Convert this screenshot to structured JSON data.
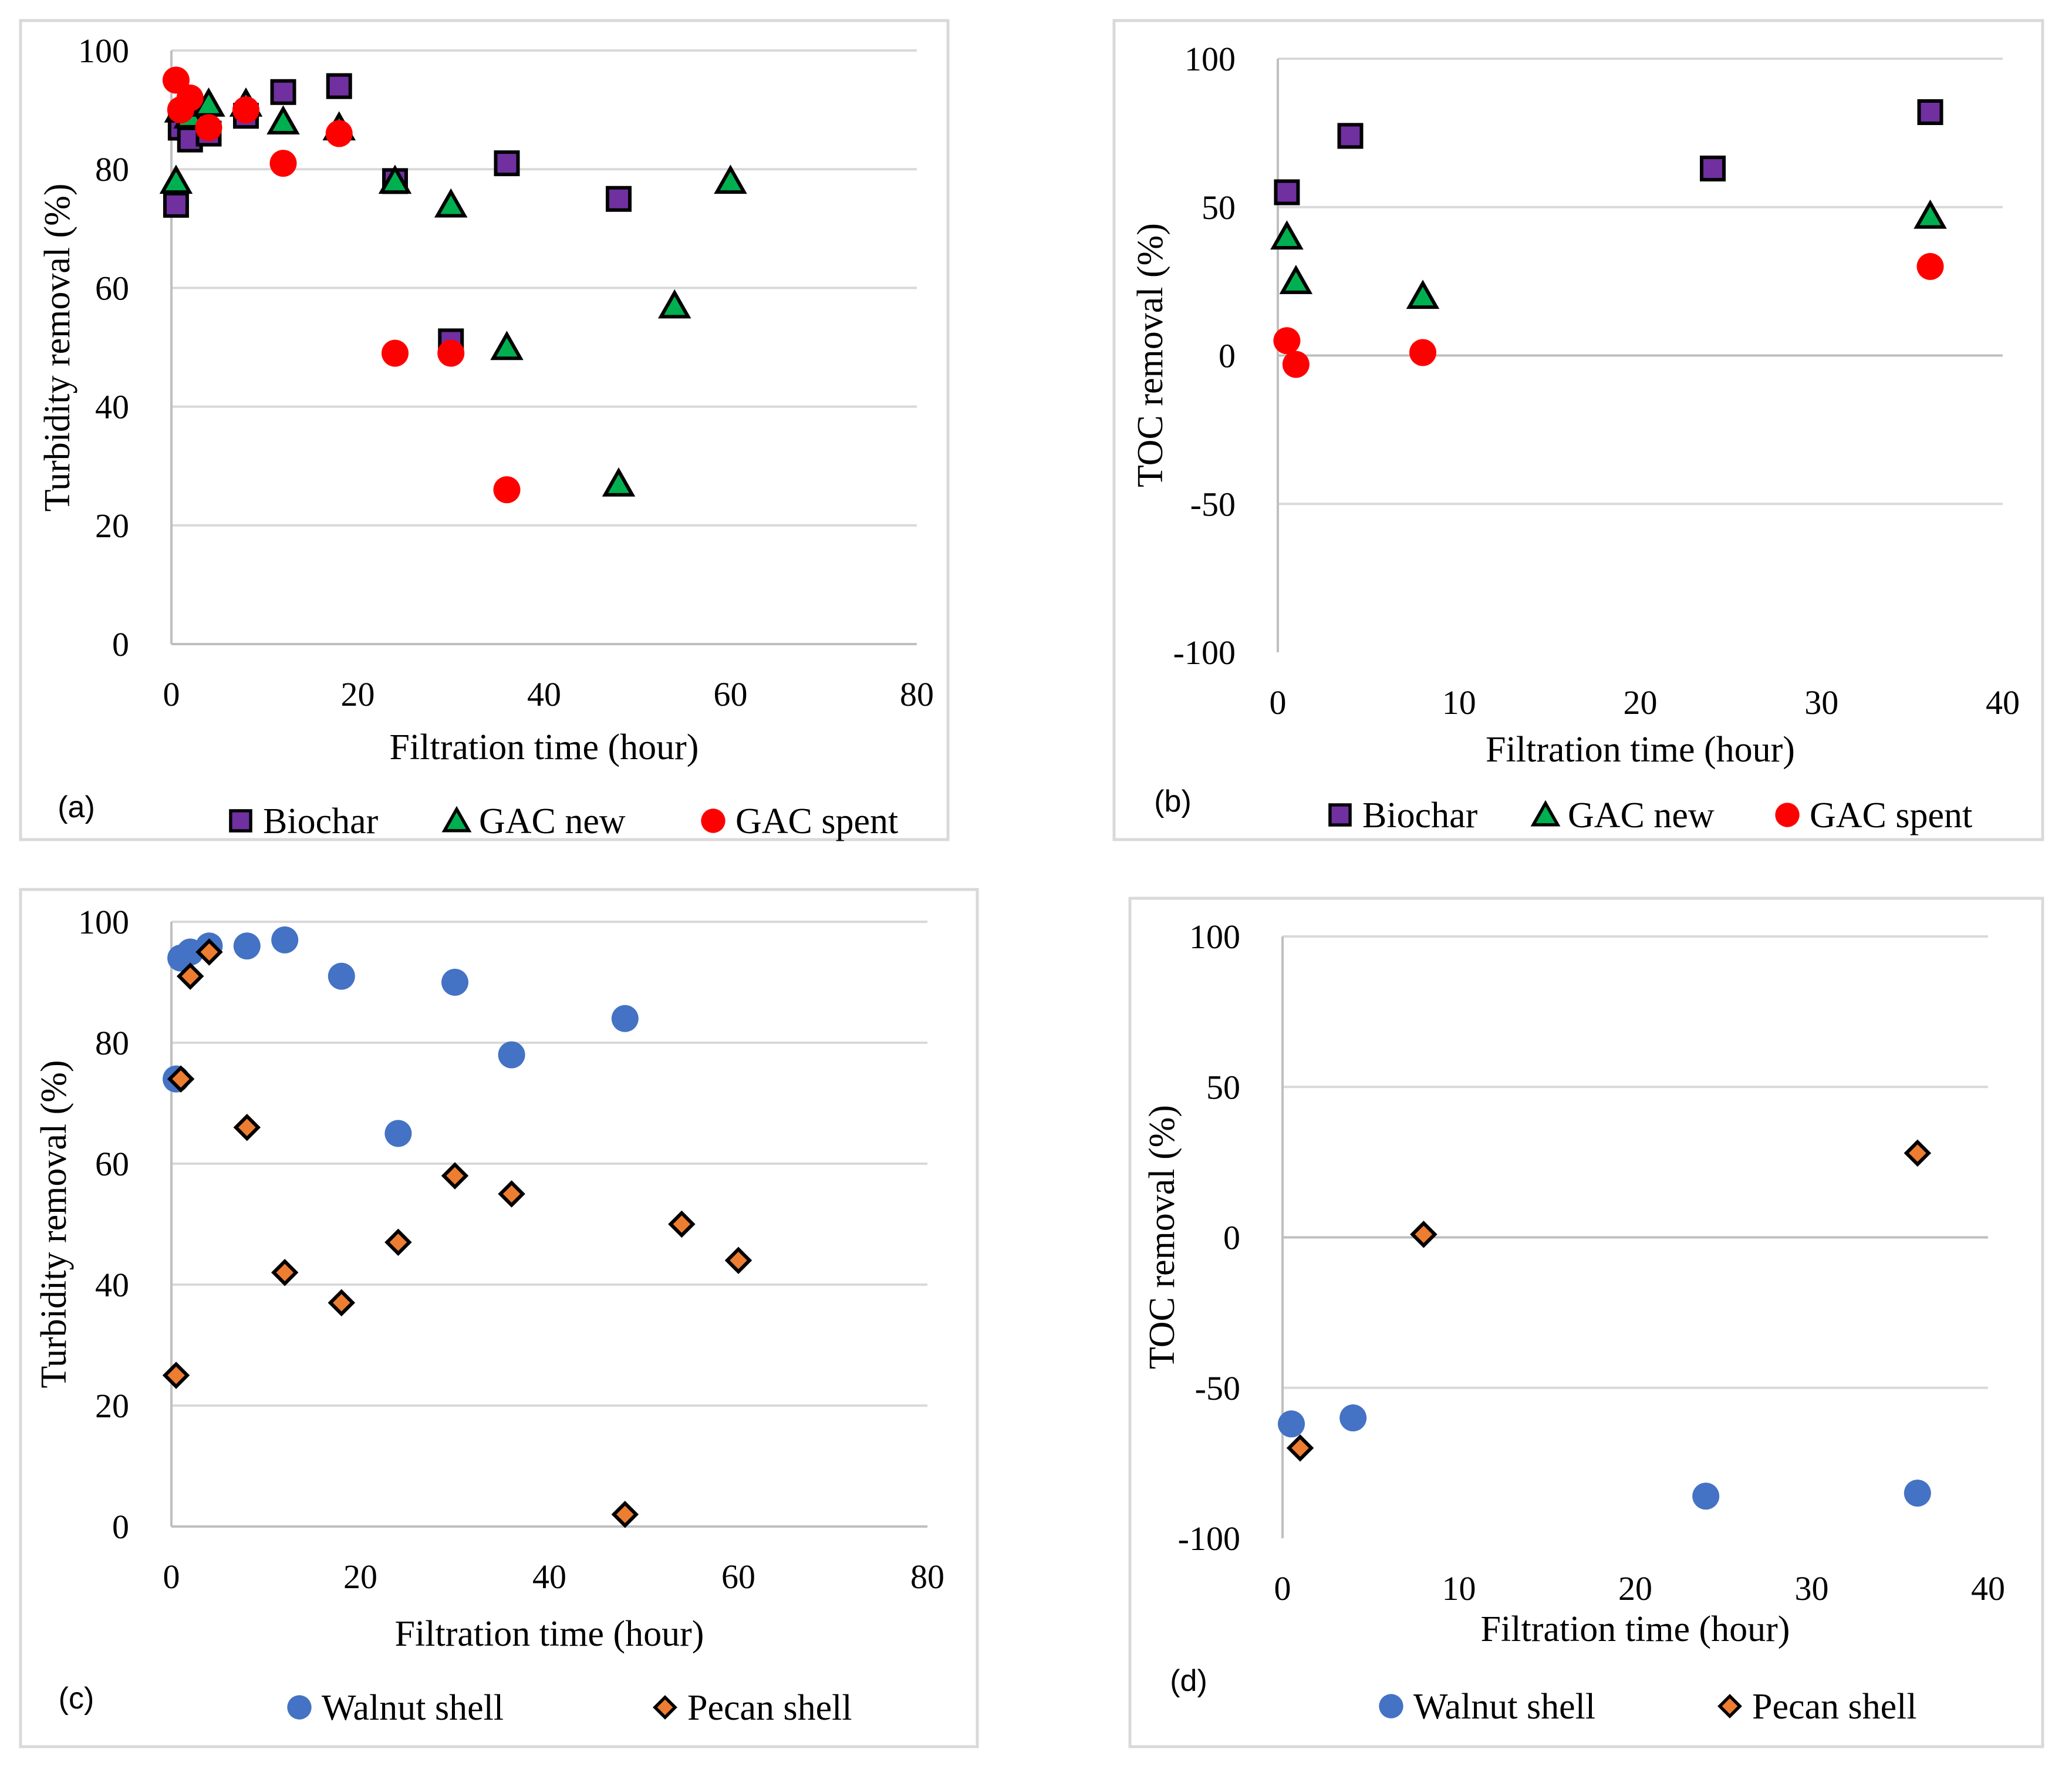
{
  "figure": {
    "colors": {
      "biochar": "#7030a0",
      "gac_new": "#00b050",
      "gac_spent": "#ff0000",
      "walnut": "#4472c4",
      "pecan": "#ed7d31"
    }
  },
  "chart_data": [
    {
      "id": "a",
      "type": "scatter",
      "panel_label": "(a)",
      "xlabel": "Filtration time (hour)",
      "ylabel": "Turbidity removal (%)",
      "xlim": [
        0,
        80
      ],
      "ylim": [
        0,
        100
      ],
      "xticks": [
        "0",
        "20",
        "40",
        "60",
        "80"
      ],
      "yticks": [
        "0",
        "20",
        "40",
        "60",
        "80",
        "100"
      ],
      "legend_position": "bottom",
      "series": [
        {
          "name": "Biochar",
          "marker": "square",
          "color": "#7030a0",
          "x": [
            0.5,
            1,
            2,
            4,
            8,
            12,
            18,
            24,
            30,
            36,
            48
          ],
          "y": [
            74,
            87,
            85,
            86,
            89,
            93,
            94,
            78,
            51,
            81,
            75
          ]
        },
        {
          "name": "GAC new",
          "marker": "triangle",
          "color": "#00b050",
          "x": [
            0.5,
            1,
            2,
            4,
            8,
            12,
            18,
            24,
            30,
            36,
            48,
            54,
            60
          ],
          "y": [
            78,
            90,
            89,
            91,
            91,
            88,
            87,
            78,
            74,
            50,
            27,
            57,
            78
          ]
        },
        {
          "name": "GAC spent",
          "marker": "circle",
          "color": "#ff0000",
          "x": [
            0.5,
            1,
            2,
            4,
            8,
            12,
            18,
            24,
            30,
            36
          ],
          "y": [
            95,
            90,
            92,
            87,
            90,
            81,
            86,
            49,
            49,
            26
          ]
        }
      ]
    },
    {
      "id": "b",
      "type": "scatter",
      "panel_label": "(b)",
      "xlabel": "Filtration time (hour)",
      "ylabel": "TOC removal (%)",
      "xlim": [
        0,
        40
      ],
      "ylim": [
        -100,
        100
      ],
      "xticks": [
        "0",
        "10",
        "20",
        "30",
        "40"
      ],
      "yticks": [
        "-100",
        "-50",
        "0",
        "50",
        "100"
      ],
      "legend_position": "bottom",
      "series": [
        {
          "name": "Biochar",
          "marker": "square",
          "color": "#7030a0",
          "x": [
            0.5,
            4,
            24,
            36
          ],
          "y": [
            55,
            74,
            63,
            82
          ]
        },
        {
          "name": "GAC new",
          "marker": "triangle",
          "color": "#00b050",
          "x": [
            0.5,
            1,
            8,
            36
          ],
          "y": [
            40,
            25,
            20,
            47
          ]
        },
        {
          "name": "GAC spent",
          "marker": "circle",
          "color": "#ff0000",
          "x": [
            0.5,
            1,
            8,
            36
          ],
          "y": [
            5,
            -3,
            1,
            30
          ]
        }
      ]
    },
    {
      "id": "c",
      "type": "scatter",
      "panel_label": "(c)",
      "xlabel": "Filtration time (hour)",
      "ylabel": "Turbidity removal (%)",
      "xlim": [
        0,
        80
      ],
      "ylim": [
        0,
        100
      ],
      "xticks": [
        "0",
        "20",
        "40",
        "60",
        "80"
      ],
      "yticks": [
        "0",
        "20",
        "40",
        "60",
        "80",
        "100"
      ],
      "legend_position": "bottom",
      "series": [
        {
          "name": "Walnut shell",
          "marker": "circle",
          "color": "#4472c4",
          "x": [
            0.5,
            1,
            2,
            4,
            8,
            12,
            18,
            24,
            30,
            36,
            48
          ],
          "y": [
            74,
            94,
            95,
            96,
            96,
            97,
            91,
            65,
            90,
            78,
            84
          ]
        },
        {
          "name": "Pecan shell",
          "marker": "diamond",
          "color": "#ed7d31",
          "x": [
            0.5,
            1,
            2,
            4,
            8,
            12,
            18,
            24,
            30,
            36,
            48,
            54,
            60
          ],
          "y": [
            25,
            74,
            91,
            95,
            66,
            42,
            37,
            47,
            58,
            55,
            2,
            50,
            44
          ]
        }
      ]
    },
    {
      "id": "d",
      "type": "scatter",
      "panel_label": "(d)",
      "xlabel": "Filtration time (hour)",
      "ylabel": "TOC removal (%)",
      "xlim": [
        0,
        40
      ],
      "ylim": [
        -100,
        100
      ],
      "xticks": [
        "0",
        "10",
        "20",
        "30",
        "40"
      ],
      "yticks": [
        "-100",
        "-50",
        "0",
        "50",
        "100"
      ],
      "legend_position": "bottom",
      "series": [
        {
          "name": "Walnut shell",
          "marker": "circle",
          "color": "#4472c4",
          "x": [
            0.5,
            4,
            24,
            36
          ],
          "y": [
            -62,
            -60,
            -86,
            -85
          ]
        },
        {
          "name": "Pecan shell",
          "marker": "diamond",
          "color": "#ed7d31",
          "x": [
            1,
            8,
            36
          ],
          "y": [
            -70,
            1,
            28
          ]
        }
      ]
    }
  ]
}
